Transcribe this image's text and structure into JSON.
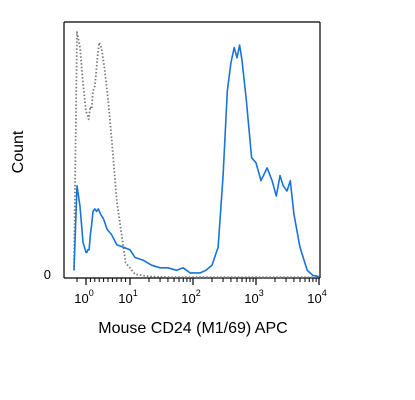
{
  "chart_data": {
    "type": "line",
    "title": "",
    "xlabel": "Mouse CD24 (M1/69) APC",
    "ylabel": "Count",
    "x_scale": "biexponential",
    "xlim": [
      -0.4,
      10000
    ],
    "ylim": [
      0,
      100
    ],
    "x_ticks": [
      {
        "value": 0,
        "base": "10",
        "exp": "0"
      },
      {
        "value": 10,
        "base": "10",
        "exp": "1"
      },
      {
        "value": 100,
        "base": "10",
        "exp": "2"
      },
      {
        "value": 1000,
        "base": "10",
        "exp": "3"
      },
      {
        "value": 10000,
        "base": "10",
        "exp": "4"
      }
    ],
    "y_ticks": [
      {
        "value": 0,
        "label": "0"
      }
    ],
    "grid": false,
    "legend": "none",
    "series": [
      {
        "color": "#7a7a7a",
        "style": "dotted",
        "x": [
          -0.4,
          -0.3,
          -0.2,
          -0.1,
          0.0,
          0.3,
          0.6,
          1.0,
          1.3,
          1.6,
          2.0,
          2.3,
          2.6,
          3.0,
          3.5,
          4.2,
          5.0,
          5.8,
          7.0,
          9.0,
          12.0,
          20.0,
          50.0,
          200.0,
          1000.0,
          10000.0
        ],
        "y": [
          3,
          96,
          90,
          76,
          65,
          64,
          62,
          67,
          66,
          73,
          75,
          80,
          86,
          92,
          90,
          82,
          70,
          55,
          30,
          6,
          1.5,
          0.6,
          0.3,
          0.3,
          0.3,
          0.3
        ]
      },
      {
        "color": "#1a73d9",
        "style": "solid",
        "x": [
          -0.4,
          -0.3,
          -0.2,
          -0.1,
          0.0,
          0.2,
          0.4,
          0.7,
          1.0,
          1.3,
          1.6,
          2.0,
          2.4,
          2.8,
          3.3,
          4.0,
          4.8,
          5.8,
          7.0,
          8.5,
          10.0,
          12.0,
          16.0,
          22.0,
          30.0,
          40.0,
          55.0,
          70.0,
          90.0,
          110.0,
          130.0,
          160.0,
          200.0,
          250.0,
          300.0,
          350.0,
          400.0,
          450.0,
          500.0,
          550.0,
          600.0,
          700.0,
          850.0,
          1000.0,
          1200.0,
          1500.0,
          1800.0,
          2100.0,
          2400.0,
          2700.0,
          3100.0,
          3500.0,
          4000.0,
          5000.0,
          6500.0,
          8000.0,
          10000.0
        ],
        "y": [
          3,
          36,
          28,
          14,
          10,
          10,
          11,
          11,
          17,
          21,
          26,
          27,
          26,
          27,
          25,
          23,
          19,
          17,
          13,
          12,
          11,
          8,
          7,
          5,
          4,
          4,
          3,
          4,
          2,
          2,
          2,
          3,
          5,
          12,
          40,
          73,
          84,
          90,
          86,
          91,
          85,
          70,
          47,
          45,
          38,
          43,
          38,
          32,
          40,
          36,
          34,
          38,
          25,
          12,
          3,
          1,
          0.5
        ]
      }
    ]
  }
}
